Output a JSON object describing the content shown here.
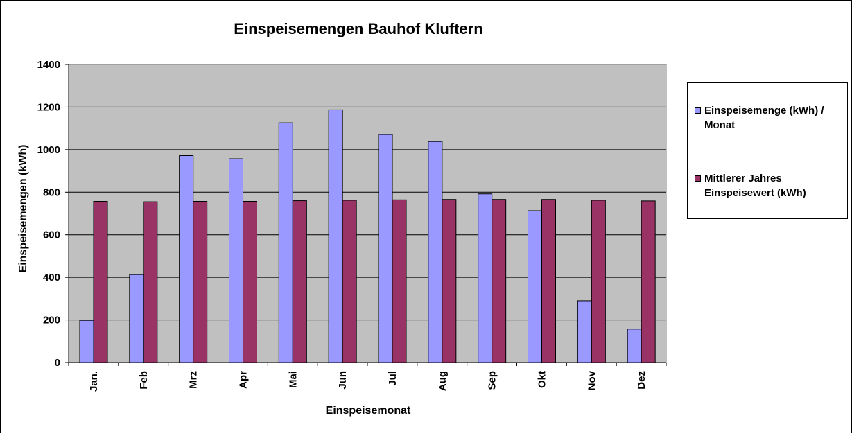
{
  "chart_data": {
    "type": "bar",
    "title": "Einspeisemengen Bauhof Kluftern",
    "xlabel": "Einspeisemonat",
    "ylabel": "Einspeisemengen (kWh)",
    "ylim": [
      0,
      1400
    ],
    "yticks": [
      0,
      200,
      400,
      600,
      800,
      1000,
      1200,
      1400
    ],
    "grid": true,
    "legend_position": "right",
    "categories": [
      "Jan.",
      "Feb",
      "Mrz",
      "Apr",
      "Mai",
      "Jun",
      "Jul",
      "Aug",
      "Sep",
      "Okt",
      "Nov",
      "Dez"
    ],
    "series": [
      {
        "name": "Einspeisemenge (kWh) / Monat",
        "name_lines": [
          "Einspeisemenge (kWh) /",
          "Monat"
        ],
        "color": "#9999FF",
        "values": [
          198,
          413,
          972,
          957,
          1126,
          1187,
          1071,
          1038,
          792,
          713,
          290,
          157
        ]
      },
      {
        "name": "Mittlerer Jahres Einspeisewert (kWh)",
        "name_lines": [
          "Mittlerer Jahres",
          "Einspeisewert (kWh)"
        ],
        "color": "#993366",
        "values": [
          757,
          755,
          757,
          757,
          760,
          762,
          764,
          766,
          766,
          766,
          762,
          759
        ]
      }
    ],
    "plot_background": "#C0C0C0"
  }
}
